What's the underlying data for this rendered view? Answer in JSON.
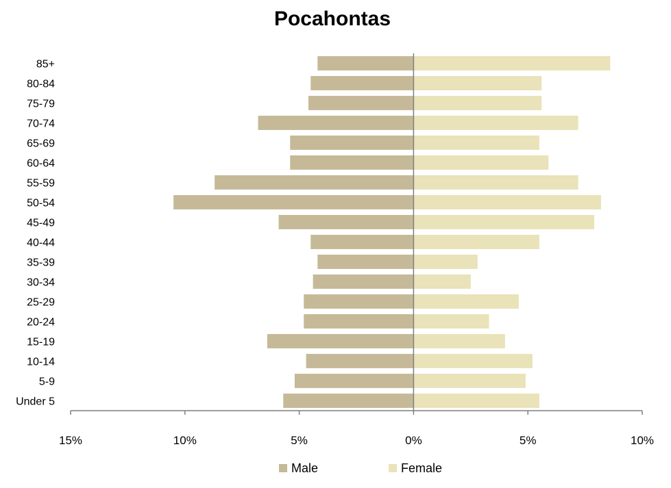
{
  "chart_data": {
    "type": "bar",
    "orientation": "horizontal",
    "title": "Pocahontas",
    "categories": [
      "Under 5",
      "5-9",
      "10-14",
      "15-19",
      "20-24",
      "25-29",
      "30-34",
      "35-39",
      "40-44",
      "45-49",
      "50-54",
      "55-59",
      "60-64",
      "65-69",
      "70-74",
      "75-79",
      "80-84",
      "85+"
    ],
    "series": [
      {
        "name": "Male",
        "color": "#c5b998",
        "values": [
          -5.7,
          -5.2,
          -4.7,
          -6.4,
          -4.8,
          -4.8,
          -4.4,
          -4.2,
          -4.5,
          -5.9,
          -10.5,
          -8.7,
          -5.4,
          -5.4,
          -6.8,
          -4.6,
          -4.5,
          -4.2
        ]
      },
      {
        "name": "Female",
        "color": "#eae2b8",
        "values": [
          5.5,
          4.9,
          5.2,
          4.0,
          3.3,
          4.6,
          2.5,
          2.8,
          5.5,
          7.9,
          8.2,
          7.2,
          5.9,
          5.5,
          7.2,
          5.6,
          5.6,
          8.6
        ]
      }
    ],
    "xlim": [
      -15,
      10
    ],
    "xticks": [
      -15,
      -10,
      -5,
      0,
      5,
      10
    ],
    "xtick_labels": [
      "15%",
      "10%",
      "5%",
      "0%",
      "5%",
      "10%"
    ],
    "legend_position": "bottom",
    "grid": false
  }
}
